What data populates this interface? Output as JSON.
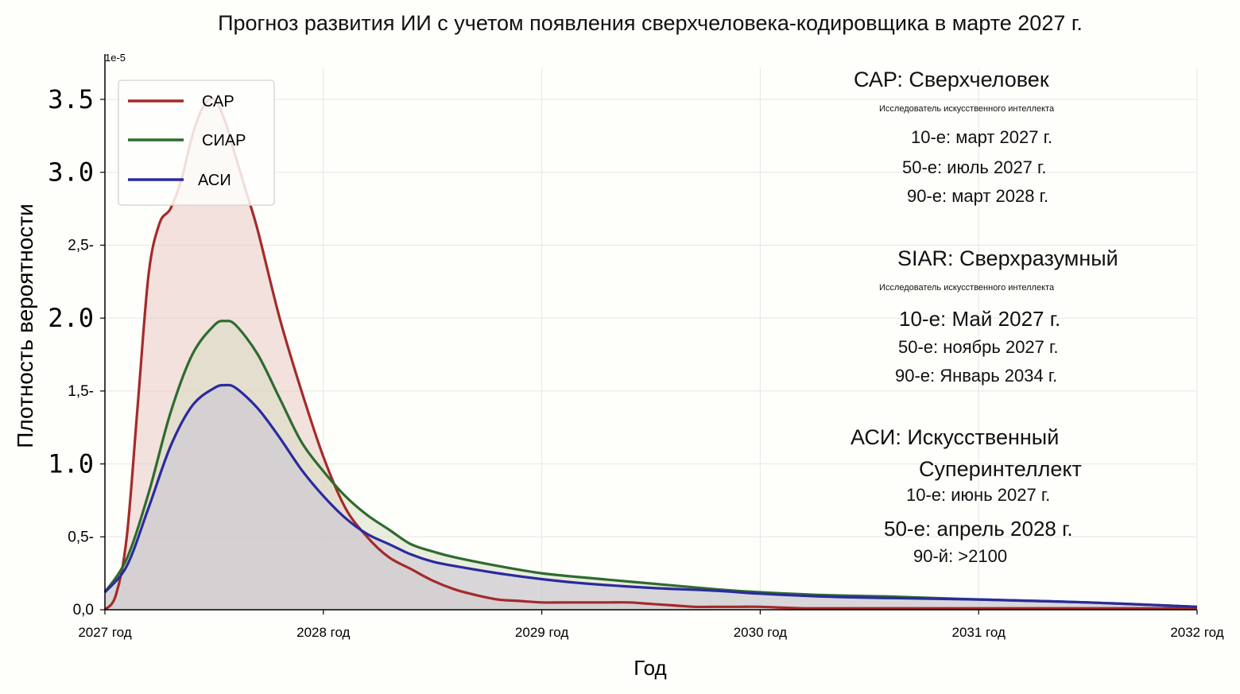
{
  "chart_data": {
    "type": "area",
    "title": "Прогноз развития ИИ с учетом появления сверхчеловека-кодировщика в марте 2027 г.",
    "xlabel": "Год",
    "ylabel": "Плотность вероятности",
    "y_multiplier": "1e-5",
    "xlim": [
      2027,
      2032
    ],
    "ylim": [
      0,
      3.7
    ],
    "x_ticks": [
      {
        "value": 2027,
        "label": "2027 год"
      },
      {
        "value": 2028,
        "label": "2028 год"
      },
      {
        "value": 2029,
        "label": "2029 год"
      },
      {
        "value": 2030,
        "label": "2030 год"
      },
      {
        "value": 2031,
        "label": "2031 год"
      },
      {
        "value": 2032,
        "label": "2032 год"
      }
    ],
    "y_ticks": [
      {
        "value": 0.0,
        "label": "0,0"
      },
      {
        "value": 0.5,
        "label": "0,5-"
      },
      {
        "value": 1.0,
        "label": "1.0"
      },
      {
        "value": 1.5,
        "label": "1,5-"
      },
      {
        "value": 2.0,
        "label": "2.0"
      },
      {
        "value": 2.5,
        "label": "2,5-"
      },
      {
        "value": 3.0,
        "label": "3.0"
      },
      {
        "value": 3.5,
        "label": "3.5"
      }
    ],
    "grid": true,
    "legend_position": "top-left",
    "series": [
      {
        "name": "САР",
        "color": "#a52a2a",
        "fill": "#e8c8c2",
        "x": [
          2027.0,
          2027.05,
          2027.1,
          2027.15,
          2027.2,
          2027.25,
          2027.3,
          2027.35,
          2027.4,
          2027.45,
          2027.5,
          2027.55,
          2027.6,
          2027.65,
          2027.7,
          2027.8,
          2027.9,
          2028.0,
          2028.1,
          2028.2,
          2028.3,
          2028.4,
          2028.5,
          2028.6,
          2028.7,
          2028.8,
          2028.9,
          2029.0,
          2029.1,
          2029.2,
          2029.3,
          2029.4,
          2029.5,
          2029.6,
          2029.7,
          2029.8,
          2029.9,
          2030.0,
          2030.2,
          2030.5,
          2031.0,
          2031.5,
          2032.0
        ],
        "values": [
          0.0,
          0.1,
          0.5,
          1.4,
          2.3,
          2.65,
          2.75,
          2.95,
          3.25,
          3.45,
          3.5,
          3.35,
          3.1,
          2.85,
          2.6,
          2.0,
          1.5,
          1.05,
          0.7,
          0.5,
          0.36,
          0.28,
          0.2,
          0.14,
          0.1,
          0.07,
          0.06,
          0.05,
          0.05,
          0.05,
          0.05,
          0.05,
          0.04,
          0.03,
          0.02,
          0.02,
          0.02,
          0.02,
          0.01,
          0.01,
          0.01,
          0.01,
          0.01
        ]
      },
      {
        "name": "СИАР",
        "color": "#2e6b2e",
        "fill": "#d9dcc4",
        "x": [
          2027.0,
          2027.1,
          2027.2,
          2027.3,
          2027.4,
          2027.5,
          2027.55,
          2027.6,
          2027.7,
          2027.8,
          2027.9,
          2028.0,
          2028.1,
          2028.2,
          2028.3,
          2028.4,
          2028.5,
          2028.6,
          2028.8,
          2029.0,
          2029.2,
          2029.5,
          2029.8,
          2030.0,
          2030.3,
          2030.6,
          2031.0,
          2031.5,
          2032.0
        ],
        "values": [
          0.12,
          0.35,
          0.8,
          1.35,
          1.75,
          1.95,
          1.98,
          1.95,
          1.75,
          1.45,
          1.15,
          0.95,
          0.78,
          0.65,
          0.55,
          0.45,
          0.4,
          0.36,
          0.3,
          0.25,
          0.22,
          0.18,
          0.14,
          0.12,
          0.1,
          0.09,
          0.07,
          0.05,
          0.02
        ]
      },
      {
        "name": "АСИ",
        "color": "#2a2a9e",
        "fill": "#c8c4d6",
        "x": [
          2027.0,
          2027.1,
          2027.2,
          2027.3,
          2027.4,
          2027.5,
          2027.55,
          2027.6,
          2027.7,
          2027.8,
          2027.9,
          2028.0,
          2028.1,
          2028.2,
          2028.3,
          2028.4,
          2028.5,
          2028.6,
          2028.8,
          2029.0,
          2029.2,
          2029.5,
          2029.8,
          2030.0,
          2030.3,
          2030.6,
          2031.0,
          2031.5,
          2032.0
        ],
        "values": [
          0.12,
          0.3,
          0.7,
          1.12,
          1.4,
          1.52,
          1.54,
          1.52,
          1.38,
          1.18,
          0.96,
          0.78,
          0.63,
          0.52,
          0.45,
          0.38,
          0.33,
          0.3,
          0.25,
          0.21,
          0.18,
          0.15,
          0.13,
          0.11,
          0.09,
          0.08,
          0.07,
          0.05,
          0.02
        ]
      }
    ]
  },
  "annotations": [
    {
      "heading": "САР: Сверхчеловек",
      "subheading": "Исследователь искусственного интеллекта",
      "lines": [
        "10-е: март 2027 г.",
        "50-е: июль 2027 г.",
        "90-е: март 2028 г."
      ]
    },
    {
      "heading": "SIAR: Сверхразумный",
      "subheading": "Исследователь искусственного интеллекта",
      "lines": [
        "10-е: Май 2027 г.",
        "50-е: ноябрь 2027 г.",
        "90-е: Январь 2034 г."
      ]
    },
    {
      "heading": "АСИ: Искусственный",
      "heading2": "Суперинтеллект",
      "lines": [
        "10-е: июнь 2027 г.",
        "50-е: апрель 2028 г.",
        "90-й: >2100"
      ]
    }
  ]
}
